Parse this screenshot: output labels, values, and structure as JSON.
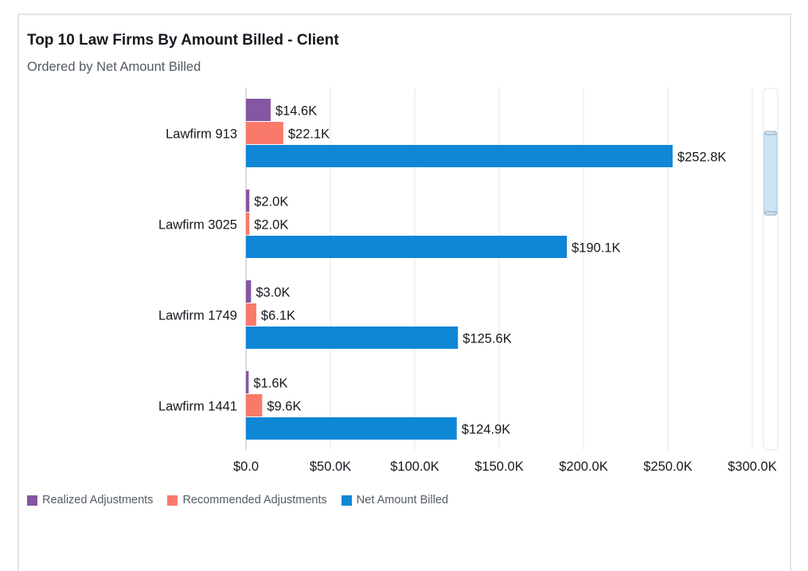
{
  "chart_data": {
    "type": "bar",
    "orientation": "horizontal",
    "title": "Top 10 Law Firms By Amount Billed - Client",
    "subtitle": "Ordered by Net Amount Billed",
    "categories": [
      "Lawfirm 913",
      "Lawfirm 3025",
      "Lawfirm 1749",
      "Lawfirm 1441"
    ],
    "series": [
      {
        "name": "Realized Adjustments",
        "color": "#8456a3",
        "values": [
          14.6,
          2.0,
          3.0,
          1.6
        ],
        "labels": [
          "$14.6K",
          "$2.0K",
          "$3.0K",
          "$1.6K"
        ]
      },
      {
        "name": "Recommended Adjustments",
        "color": "#f97a6b",
        "values": [
          22.1,
          2.0,
          6.1,
          9.6
        ],
        "labels": [
          "$22.1K",
          "$2.0K",
          "$6.1K",
          "$9.6K"
        ]
      },
      {
        "name": "Net Amount Billed",
        "color": "#0f86d6",
        "values": [
          252.8,
          190.1,
          125.6,
          124.9
        ],
        "labels": [
          "$252.8K",
          "$190.1K",
          "$125.6K",
          "$124.9K"
        ]
      }
    ],
    "value_unit": "thousands USD",
    "xlim": [
      0,
      300
    ],
    "xticks": [
      0,
      50,
      100,
      150,
      200,
      250,
      300
    ],
    "xtick_labels": [
      "$0.0",
      "$50.0K",
      "$100.0K",
      "$150.0K",
      "$200.0K",
      "$250.0K",
      "$300.0K"
    ],
    "grid": true,
    "legend_position": "bottom-left",
    "scrollbar": {
      "visible_fraction": 0.4,
      "position": "top"
    }
  }
}
